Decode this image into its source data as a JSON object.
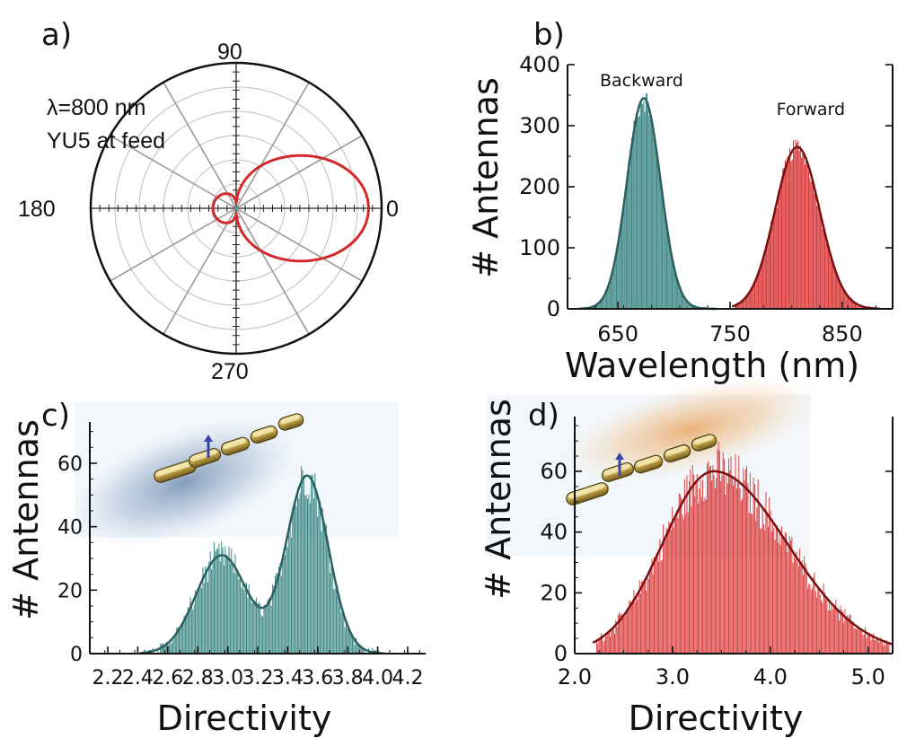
{
  "figure": {
    "panel_labels": [
      "a)",
      "b)",
      "c)",
      "d)"
    ]
  },
  "colors": {
    "teal": "#2e7f7c",
    "teal_fit": "#2c5f60",
    "red": "#d62a2a",
    "red_fit": "#7a1010",
    "polar_curve": "#d22a2a"
  },
  "chart_data": [
    {
      "panel": "a)",
      "type": "polar",
      "annotation_lines": [
        "λ=800 nm",
        "YU5 at feed"
      ],
      "angle_labels": [
        "90",
        "180",
        "0",
        "270"
      ],
      "angle_label_degrees": [
        90,
        180,
        0,
        270
      ],
      "spokes_deg": [
        0,
        30,
        60,
        90,
        120,
        150,
        180,
        210,
        240,
        270,
        300,
        330
      ],
      "radial_rings": 5,
      "pattern": {
        "name": "",
        "form": "main forward lobe toward 0 deg, small back lobe toward 180 deg",
        "forward_peak_r": 0.88,
        "forward_half_width_deg": 35,
        "back_peak_r": 0.13
      }
    },
    {
      "panel": "b)",
      "type": "bar",
      "xlabel": "Wavelength (nm)",
      "ylabel": "# Antennas",
      "xlim": [
        605,
        895
      ],
      "ylim": [
        0,
        400
      ],
      "xticks": [
        "650",
        "750",
        "850"
      ],
      "xtick_values": [
        650,
        750,
        850
      ],
      "yticks": [
        "0",
        "100",
        "200",
        "300",
        "400"
      ],
      "ytick_values": [
        0,
        100,
        200,
        300,
        400
      ],
      "series": [
        {
          "name": "Backward",
          "color": "#2e7f7c",
          "fit_color": "#2c5f60",
          "center": 673,
          "sigma": 15,
          "peak": 345,
          "range": [
            618,
            735
          ],
          "label_at": [
            671,
            365
          ]
        },
        {
          "name": "Forward",
          "color": "#d62a2a",
          "fit_color": "#7a1010",
          "center": 810,
          "sigma": 20,
          "peak": 265,
          "range": [
            755,
            880
          ],
          "label_at": [
            822,
            318
          ]
        }
      ]
    },
    {
      "panel": "c)",
      "type": "bar",
      "xlabel": "Directivity",
      "ylabel": "# Antennas",
      "xlim": [
        2.08,
        4.32
      ],
      "ylim": [
        0,
        73
      ],
      "xticks": [
        "2.2",
        "2.4",
        "2.6",
        "2.8",
        "3.0",
        "3.2",
        "3.4",
        "3.6",
        "3.8",
        "4.0",
        "4.2"
      ],
      "xtick_values": [
        2.2,
        2.4,
        2.6,
        2.8,
        3.0,
        3.2,
        3.4,
        3.6,
        3.8,
        4.0,
        4.2
      ],
      "yticks": [
        "0",
        "20",
        "40",
        "60"
      ],
      "ytick_values": [
        0,
        20,
        40,
        60
      ],
      "series": [
        {
          "name": "",
          "color": "#2e7f7c",
          "fit_color": "#2c5f60",
          "components": [
            {
              "center": 2.96,
              "sigma": 0.17,
              "peak": 31
            },
            {
              "center": 3.53,
              "sigma": 0.14,
              "peak": 56
            }
          ],
          "range": [
            2.44,
            4.02
          ]
        }
      ]
    },
    {
      "panel": "d)",
      "type": "bar",
      "xlabel": "Directivity",
      "ylabel": "# Antennas",
      "xlim": [
        2.0,
        5.25
      ],
      "ylim": [
        0,
        78
      ],
      "xticks": [
        "2.0",
        "3.0",
        "4.0",
        "5.0"
      ],
      "xtick_values": [
        2.0,
        3.0,
        4.0,
        5.0
      ],
      "yticks": [
        "0",
        "20",
        "40",
        "60"
      ],
      "ytick_values": [
        0,
        20,
        40,
        60
      ],
      "series": [
        {
          "name": "",
          "color": "#d62a2a",
          "fit_color": "#7a1010",
          "center": 3.42,
          "sigma_left": 0.52,
          "sigma_right": 0.75,
          "peak": 60,
          "range": [
            2.22,
            5.22
          ]
        }
      ]
    }
  ]
}
